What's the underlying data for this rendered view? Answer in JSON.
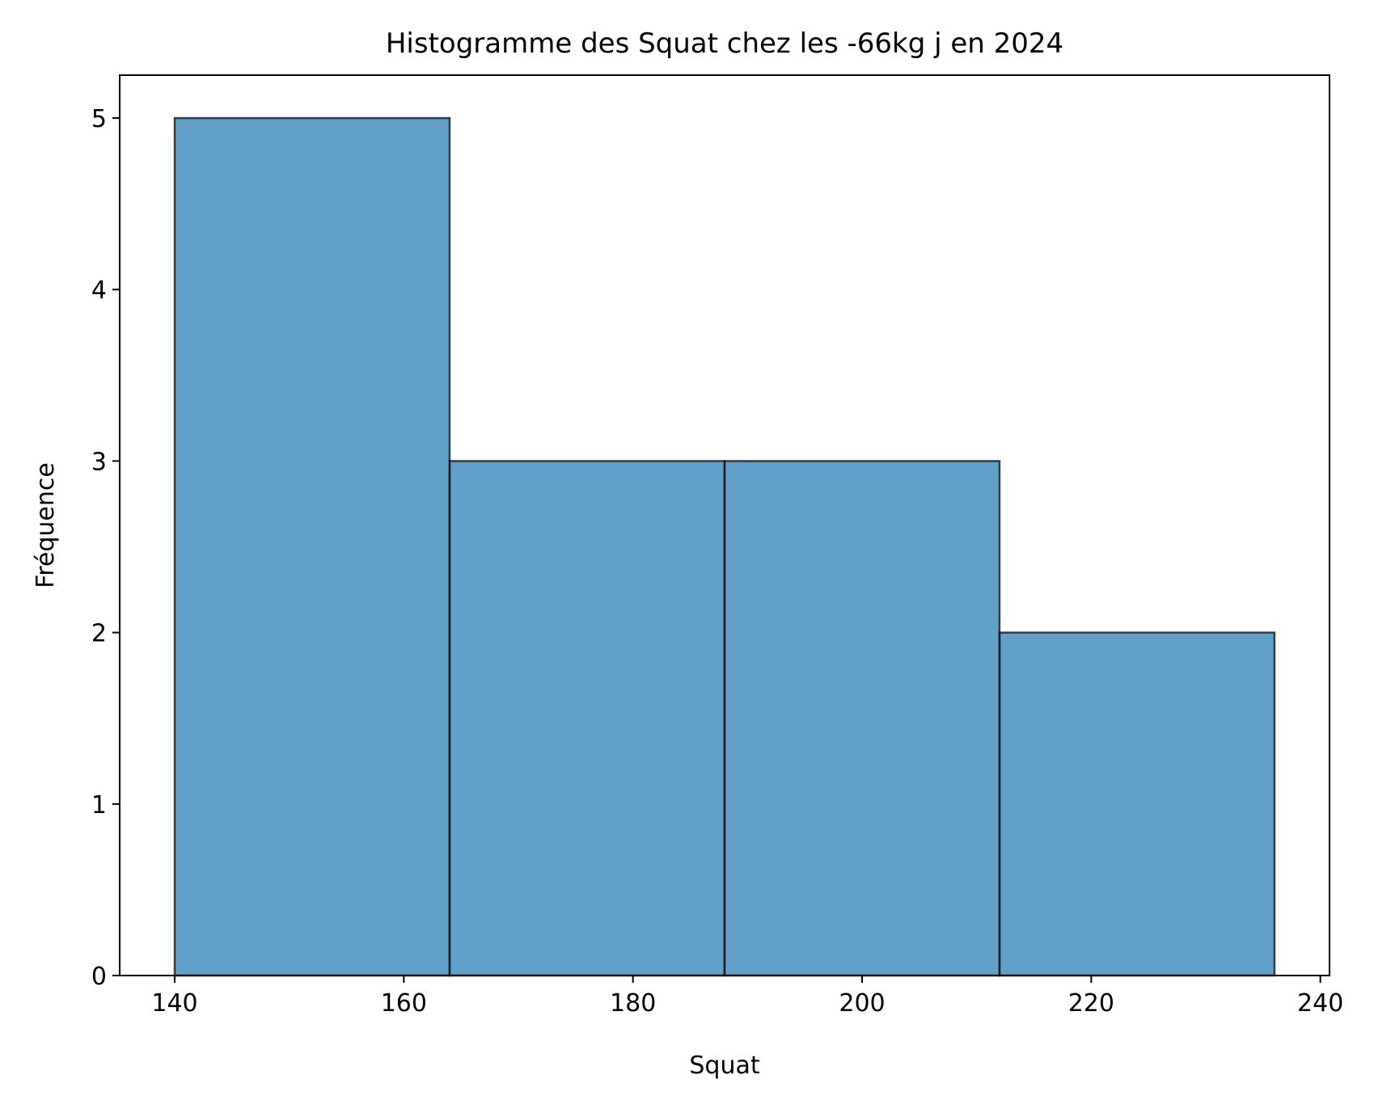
{
  "chart_data": {
    "type": "bar",
    "subtype": "histogram",
    "title": "Histogramme des Squat chez les -66kg j en 2024",
    "xlabel": "Squat",
    "ylabel": "Fréquence",
    "bins": [
      {
        "start": 140.0,
        "end": 164.0,
        "count": 5
      },
      {
        "start": 164.0,
        "end": 188.0,
        "count": 3
      },
      {
        "start": 188.0,
        "end": 212.0,
        "count": 3
      },
      {
        "start": 212.0,
        "end": 236.0,
        "count": 2
      }
    ],
    "xlim": [
      135.2,
      240.8
    ],
    "ylim": [
      0,
      5.25
    ],
    "xticks": [
      140,
      160,
      180,
      200,
      220,
      240
    ],
    "yticks": [
      0,
      1,
      2,
      3,
      4,
      5
    ],
    "grid": false,
    "legend": "none",
    "colors": {
      "bar_fill": "#1f77b4",
      "bar_opacity": 0.7,
      "bar_edge": "#000000"
    }
  }
}
